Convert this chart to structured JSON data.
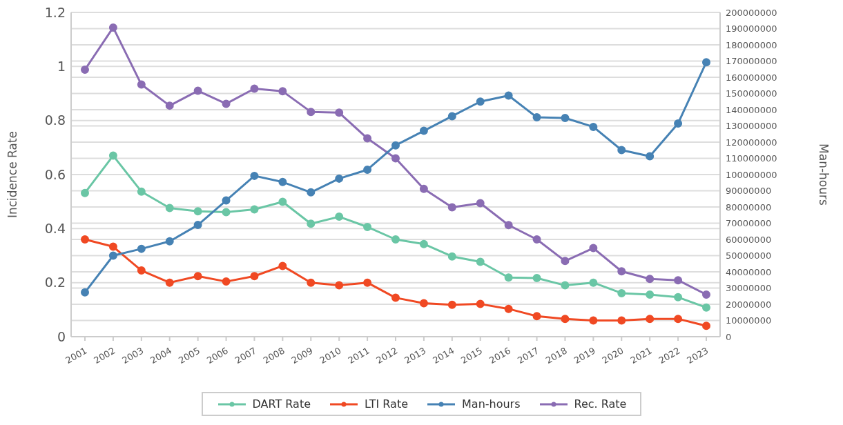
{
  "chart_data": {
    "type": "line",
    "xlabel": null,
    "ylabel": "Incidence Rate",
    "y2label": "Man-hours",
    "categories": [
      "2001",
      "2002",
      "2003",
      "2004",
      "2005",
      "2006",
      "2007",
      "2008",
      "2009",
      "2010",
      "2011",
      "2012",
      "2013",
      "2014",
      "2015",
      "2016",
      "2017",
      "2018",
      "2019",
      "2020",
      "2021",
      "2022",
      "2023"
    ],
    "series": [
      {
        "name": "LTI Rate",
        "color": "#f04923",
        "values": [
          0.36,
          0.333,
          0.245,
          0.2,
          0.224,
          0.204,
          0.224,
          0.262,
          0.2,
          0.19,
          0.2,
          0.144,
          0.124,
          0.118,
          0.121,
          0.103,
          0.076,
          0.066,
          0.06,
          0.06,
          0.066,
          0.066,
          0.04
        ]
      },
      {
        "name": "Rec. Rate",
        "color": "#8a6cb3",
        "values": [
          0.988,
          1.144,
          0.933,
          0.855,
          0.91,
          0.862,
          0.918,
          0.908,
          0.832,
          0.829,
          0.734,
          0.66,
          0.547,
          0.479,
          0.494,
          0.413,
          0.36,
          0.28,
          0.328,
          0.242,
          0.214,
          0.209,
          0.156
        ]
      },
      {
        "name": "DART Rate",
        "color": "#6ac6a5",
        "values": [
          0.532,
          0.67,
          0.537,
          0.476,
          0.464,
          0.461,
          0.471,
          0.499,
          0.418,
          0.444,
          0.406,
          0.36,
          0.343,
          0.297,
          0.277,
          0.219,
          0.217,
          0.19,
          0.2,
          0.161,
          0.156,
          0.146,
          0.108
        ]
      },
      {
        "name": "Man-hours",
        "color": "#4682b4",
        "axis": "y2",
        "values": [
          27300000,
          50000000,
          54200000,
          58800000,
          68900000,
          84000000,
          99200000,
          95400000,
          89000000,
          97500000,
          103000000,
          118000000,
          127000000,
          136000000,
          145000000,
          148700000,
          135300000,
          134900000,
          129400000,
          115100000,
          111300000,
          131500000,
          169300000
        ]
      }
    ],
    "ylim": [
      0,
      1.2
    ],
    "yticks": [
      0,
      0.2,
      0.4,
      0.6,
      0.8,
      1,
      1.2
    ],
    "y2lim": [
      0,
      200000000
    ],
    "y2ticks": [
      0,
      10000000,
      20000000,
      30000000,
      40000000,
      50000000,
      60000000,
      70000000,
      80000000,
      90000000,
      100000000,
      110000000,
      120000000,
      130000000,
      140000000,
      150000000,
      160000000,
      170000000,
      180000000,
      190000000,
      200000000
    ],
    "grid": true,
    "legend": "bottom",
    "marker": "circle",
    "line_style": "solid"
  }
}
